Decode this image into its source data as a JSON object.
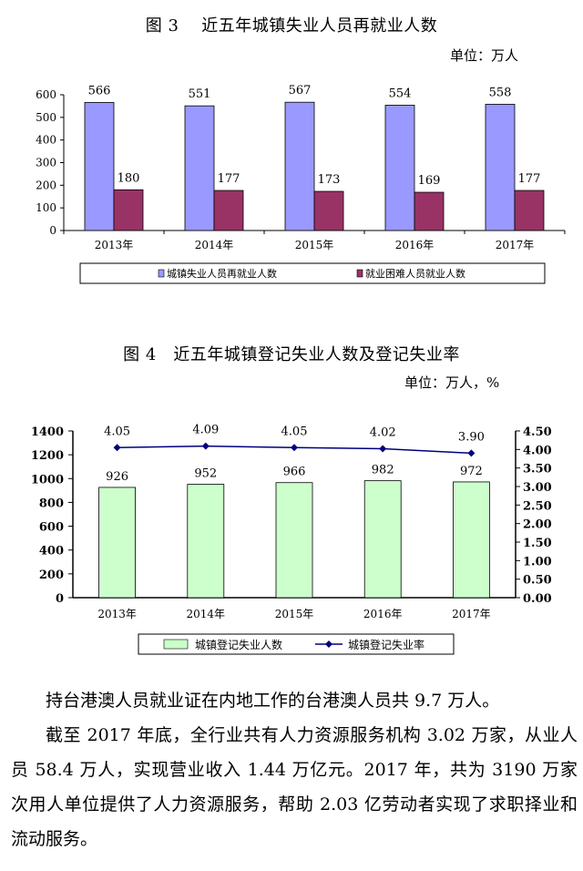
{
  "figure3": {
    "title": "图 3　 近五年城镇失业人员再就业人数",
    "unit": "单位：万人",
    "chart_data": {
      "type": "bar",
      "categories": [
        "2013年",
        "2014年",
        "2015年",
        "2016年",
        "2017年"
      ],
      "series": [
        {
          "name": "城镇失业人员再就业人数",
          "values": [
            566,
            551,
            567,
            554,
            558
          ],
          "color": "#9999ff"
        },
        {
          "name": "就业困难人员就业人数",
          "values": [
            180,
            177,
            173,
            169,
            177
          ],
          "color": "#993366"
        }
      ],
      "ylim": [
        0,
        600
      ],
      "yticks": [
        "0",
        "100",
        "200",
        "300",
        "400",
        "500",
        "600"
      ],
      "legend": "bottom"
    }
  },
  "figure4": {
    "title": "图 4　近五年城镇登记失业人数及登记失业率",
    "unit": "单位：万人，%",
    "chart_data": {
      "type": "bar",
      "categories": [
        "2013年",
        "2014年",
        "2015年",
        "2016年",
        "2017年"
      ],
      "series": [
        {
          "name": "城镇登记失业人数",
          "type": "bar",
          "axis": "left",
          "values": [
            926,
            952,
            966,
            982,
            972
          ],
          "color": "#ccffcc"
        },
        {
          "name": "城镇登记失业率",
          "type": "line",
          "axis": "right",
          "values": [
            4.05,
            4.09,
            4.05,
            4.02,
            3.9
          ],
          "labels": [
            "4.05",
            "4.09",
            "4.05",
            "4.02",
            "3.90"
          ],
          "color": "#000080"
        }
      ],
      "ylim": [
        0,
        1400
      ],
      "yticks": [
        "0",
        "200",
        "400",
        "600",
        "800",
        "1000",
        "1200",
        "1400"
      ],
      "y2lim": [
        0,
        4.5
      ],
      "y2ticks": [
        "0.00",
        "0.50",
        "1.00",
        "1.50",
        "2.00",
        "2.50",
        "3.00",
        "3.50",
        "4.00",
        "4.50"
      ],
      "legend": "bottom"
    }
  },
  "paragraphs": [
    "持台港澳人员就业证在内地工作的台港澳人员共 9.7 万人。",
    "截至 2017 年底，全行业共有人力资源服务机构 3.02 万家，从业人员 58.4 万人，实现营业收入 1.44 万亿元。2017 年，共为 3190 万家次用人单位提供了人力资源服务，帮助 2.03 亿劳动者实现了求职择业和流动服务。"
  ]
}
